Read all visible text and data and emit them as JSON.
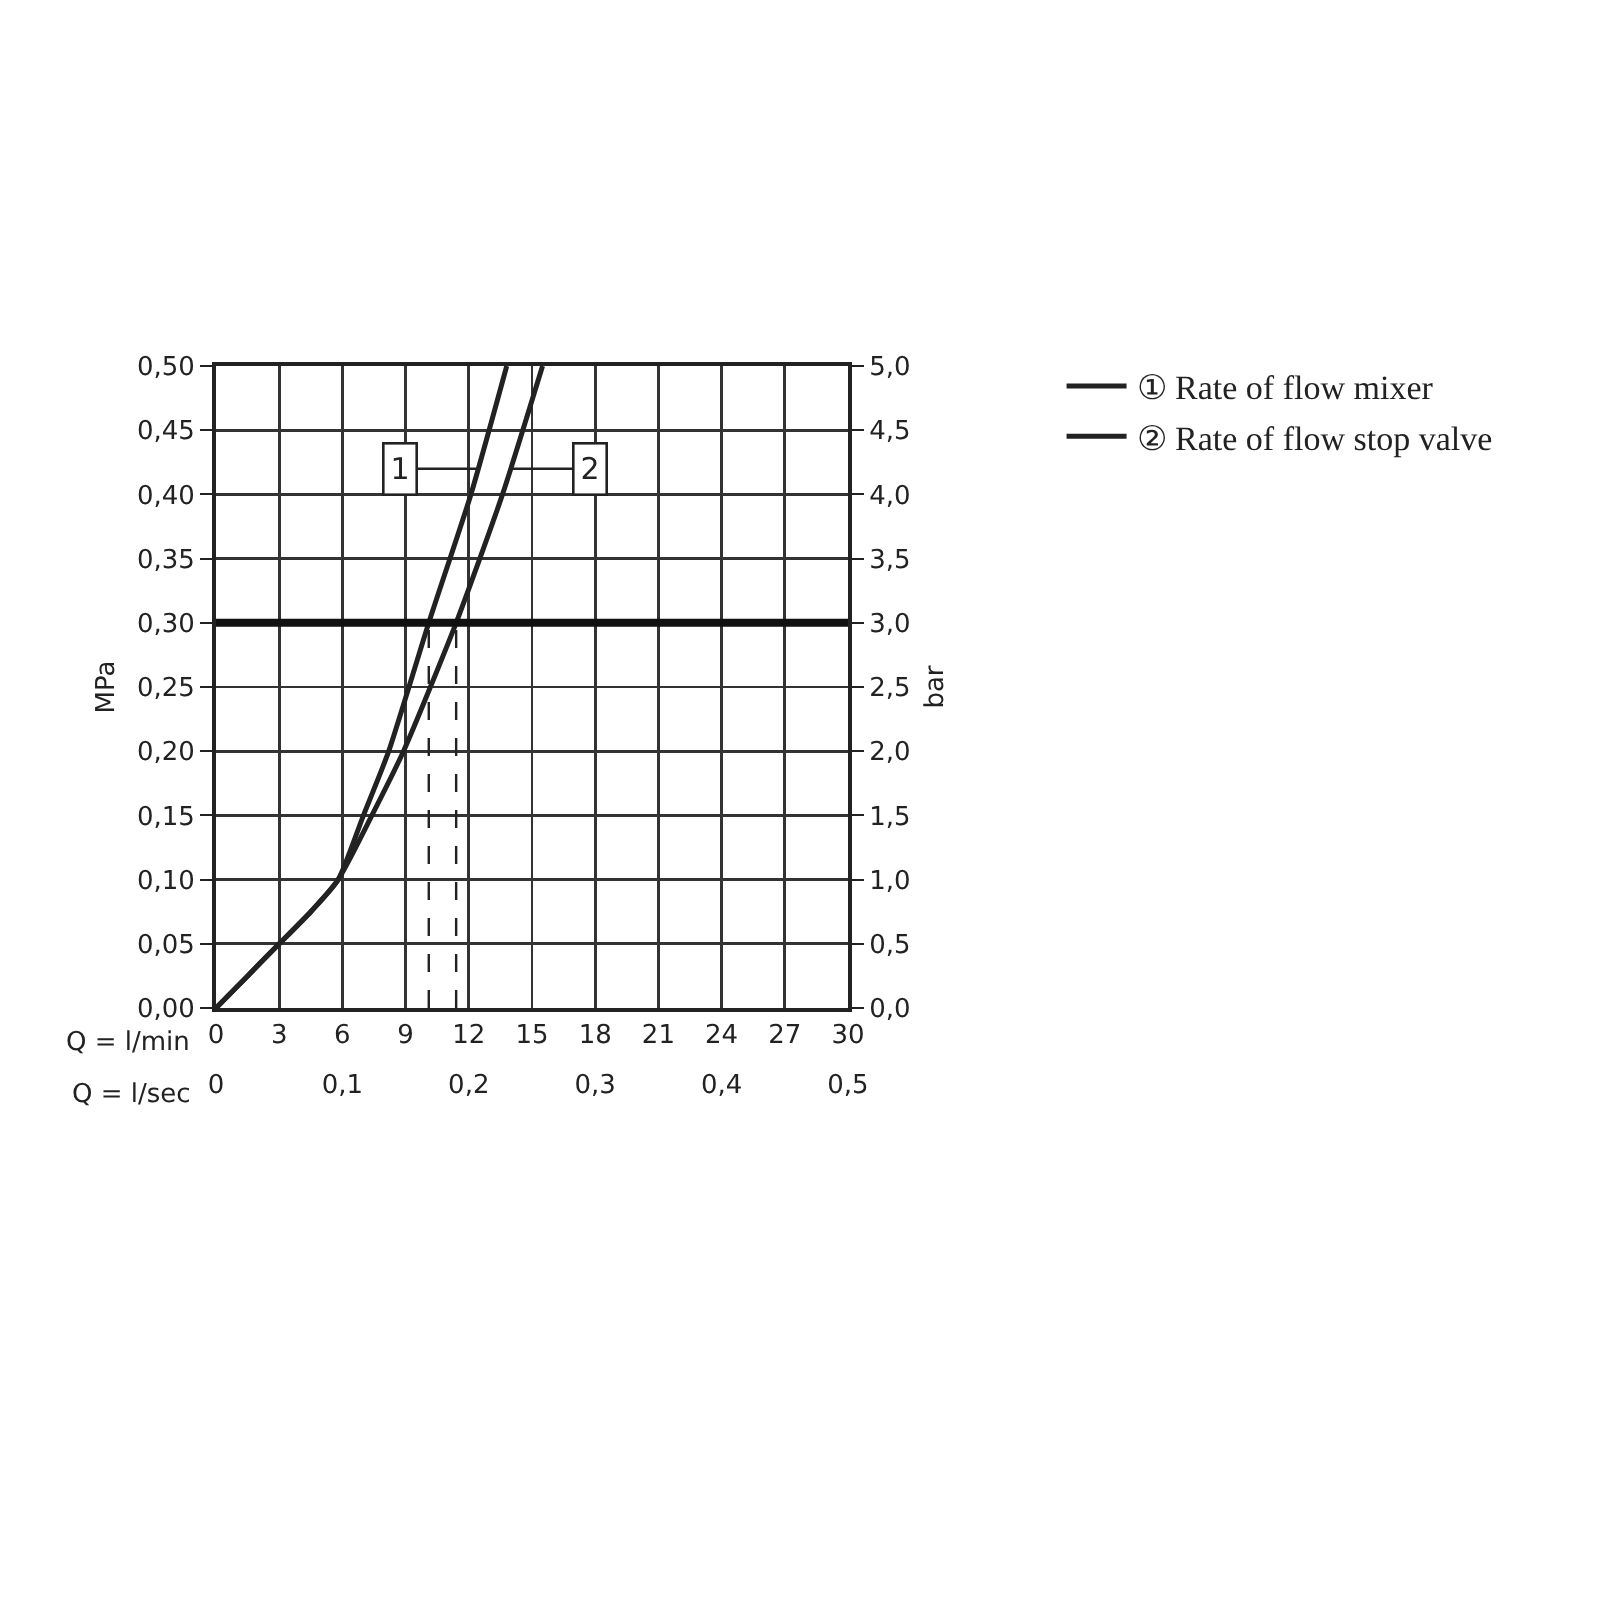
{
  "chart_data": {
    "type": "line",
    "xlabel": "Q = l/min",
    "x2label": "Q = l/sec",
    "ylabel": "MPa",
    "y2label": "bar",
    "xlim": [
      0,
      30
    ],
    "xticks": [
      0,
      3,
      6,
      9,
      12,
      15,
      18,
      21,
      24,
      27,
      30
    ],
    "x2lim": [
      0,
      0.5
    ],
    "x2ticks": [
      0,
      {
        "value": 0.1,
        "label": "0,1"
      },
      {
        "value": 0.2,
        "label": "0,2"
      },
      {
        "value": 0.3,
        "label": "0,3"
      },
      {
        "value": 0.4,
        "label": "0,4"
      },
      {
        "value": 0.5,
        "label": "0,5"
      }
    ],
    "ylim": [
      0,
      0.5
    ],
    "yticks": [
      {
        "value": 0,
        "label": "0,00"
      },
      {
        "value": 0.05,
        "label": "0,05"
      },
      {
        "value": 0.1,
        "label": "0,10"
      },
      {
        "value": 0.15,
        "label": "0,15"
      },
      {
        "value": 0.2,
        "label": "0,20"
      },
      {
        "value": 0.25,
        "label": "0,25"
      },
      {
        "value": 0.3,
        "label": "0,30"
      },
      {
        "value": 0.35,
        "label": "0,35"
      },
      {
        "value": 0.4,
        "label": "0,40"
      },
      {
        "value": 0.45,
        "label": "0,45"
      },
      {
        "value": 0.5,
        "label": "0,50"
      }
    ],
    "y2lim": [
      0,
      5
    ],
    "y2ticks": [
      {
        "value": 0,
        "label": "0,0"
      },
      {
        "value": 0.5,
        "label": "0,5"
      },
      {
        "value": 1,
        "label": "1,0"
      },
      {
        "value": 1.5,
        "label": "1,5"
      },
      {
        "value": 2,
        "label": "2,0"
      },
      {
        "value": 2.5,
        "label": "2,5"
      },
      {
        "value": 3,
        "label": "3,0"
      },
      {
        "value": 3.5,
        "label": "3,5"
      },
      {
        "value": 4,
        "label": "4,0"
      },
      {
        "value": 4.5,
        "label": "4,5"
      },
      {
        "value": 5,
        "label": "5,0"
      }
    ],
    "grid": true,
    "legend": "top right",
    "marker": "none",
    "line_style": "solid",
    "series": [
      {
        "name": "① Rate of flow mixer",
        "color": "#222222",
        "x": [
          0,
          1.5,
          3,
          4.5,
          5.8,
          7.0,
          8.2,
          10.1,
          12.1,
          13.8
        ],
        "values": [
          0,
          0.025,
          0.05,
          0.075,
          0.1,
          0.15,
          0.2,
          0.3,
          0.4,
          0.5
        ]
      },
      {
        "name": "② Rate of flow stop valve",
        "color": "#222222",
        "x": [
          0,
          1.5,
          3,
          4.5,
          5.8,
          7.4,
          8.9,
          11.4,
          13.6,
          15.5
        ],
        "values": [
          0,
          0.025,
          0.05,
          0.075,
          0.1,
          0.15,
          0.2,
          0.3,
          0.4,
          0.5
        ]
      },
      {
        "color": "#222222",
        "line_style": "dashed",
        "x": [
          10.1,
          10.1
        ],
        "values": [
          0,
          0.3
        ]
      },
      {
        "color": "#222222",
        "line_style": "dashed",
        "x": [
          11.4,
          11.4
        ],
        "values": [
          0,
          0.3
        ]
      }
    ],
    "ref_lines": [
      {
        "axis": "y",
        "value": 0.3,
        "color": "#111111"
      }
    ],
    "annotations": [
      {
        "text": "1",
        "x": 12.35,
        "y": 0.42
      },
      {
        "text": "2",
        "x": 14.1,
        "y": 0.42
      }
    ]
  }
}
